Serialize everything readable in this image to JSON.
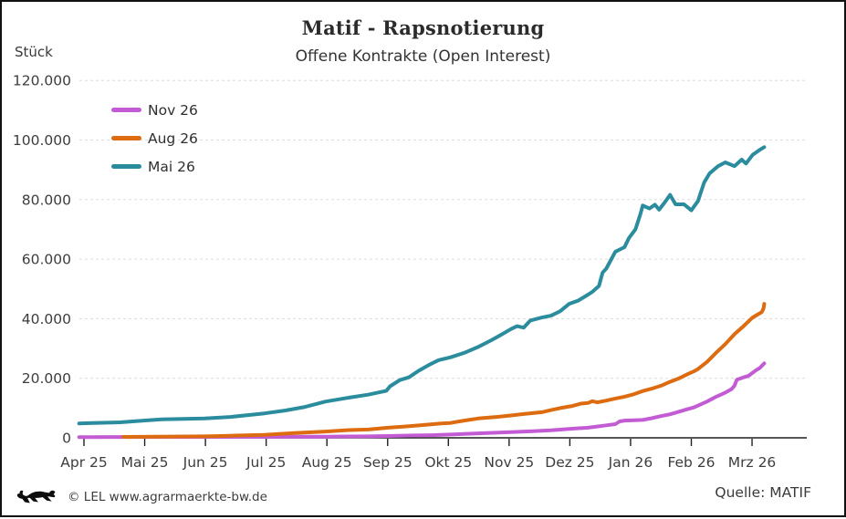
{
  "header": {
    "title": "Matif - Rapsnotierung",
    "subtitle": "Offene Kontrakte (Open Interest)",
    "y_axis_unit": "Stück"
  },
  "footer": {
    "copyright": "© LEL www.agrarmaerkte-bw.de",
    "source": "Quelle: MATIF",
    "logo_icon": "bw-lion-logo"
  },
  "colors": {
    "nov26": "#c35cd4",
    "aug26": "#dd6b10",
    "mai26": "#2b8c9e",
    "grid": "#dcdcdc",
    "axis": "#1f1f1f",
    "text": "#3d3d3d"
  },
  "legend": {
    "items": [
      {
        "label": "Nov 26",
        "color": "#c35cd4"
      },
      {
        "label": "Aug 26",
        "color": "#dd6b10"
      },
      {
        "label": "Mai 26",
        "color": "#2b8c9e"
      }
    ]
  },
  "chart_data": {
    "type": "line",
    "title": "Matif - Rapsnotierung",
    "subtitle": "Offene Kontrakte (Open Interest)",
    "ylabel": "Stück",
    "xlabel": "",
    "ylim": [
      0,
      120000
    ],
    "grid": "horizontal-dashed",
    "legend_position": "top-left",
    "x_unit": "months (0 = Apr 25 ... 11 = Mrz 26)",
    "x_tick_labels": [
      "Apr 25",
      "Mai 25",
      "Jun 25",
      "Jul 25",
      "Aug 25",
      "Sep 25",
      "Okt 25",
      "Nov 25",
      "Dez 25",
      "Jan 26",
      "Feb 26",
      "Mrz 26"
    ],
    "y_ticks": [
      0,
      20000,
      40000,
      60000,
      80000,
      100000,
      120000
    ],
    "y_tick_labels": [
      "0",
      "20.000",
      "40.000",
      "60.000",
      "80.000",
      "100.000",
      "120.000"
    ],
    "series": [
      {
        "name": "Nov 26",
        "color": "#c35cd4",
        "points": [
          [
            -0.08,
            250
          ],
          [
            1.99,
            300
          ],
          [
            2.97,
            350
          ],
          [
            3.98,
            400
          ],
          [
            4.68,
            500
          ],
          [
            5.01,
            600
          ],
          [
            5.43,
            800
          ],
          [
            5.73,
            900
          ],
          [
            6.03,
            1100
          ],
          [
            6.49,
            1500
          ],
          [
            7.03,
            1900
          ],
          [
            7.39,
            2200
          ],
          [
            7.69,
            2500
          ],
          [
            7.99,
            3000
          ],
          [
            8.3,
            3400
          ],
          [
            8.45,
            3800
          ],
          [
            8.6,
            4200
          ],
          [
            8.75,
            4600
          ],
          [
            8.82,
            5500
          ],
          [
            8.9,
            5800
          ],
          [
            9.05,
            5900
          ],
          [
            9.2,
            6000
          ],
          [
            9.35,
            6600
          ],
          [
            9.5,
            7300
          ],
          [
            9.65,
            7900
          ],
          [
            9.8,
            8800
          ],
          [
            9.95,
            9700
          ],
          [
            10.04,
            10200
          ],
          [
            10.11,
            10800
          ],
          [
            10.26,
            12200
          ],
          [
            10.41,
            13800
          ],
          [
            10.56,
            15200
          ],
          [
            10.66,
            16300
          ],
          [
            10.71,
            17500
          ],
          [
            10.75,
            19500
          ],
          [
            10.86,
            20300
          ],
          [
            10.94,
            20800
          ],
          [
            11.06,
            22600
          ],
          [
            11.13,
            23500
          ],
          [
            11.2,
            25000
          ]
        ]
      },
      {
        "name": "Aug 26",
        "color": "#dd6b10",
        "points": [
          [
            0.65,
            300
          ],
          [
            1.99,
            500
          ],
          [
            2.41,
            700
          ],
          [
            2.97,
            1000
          ],
          [
            3.47,
            1600
          ],
          [
            3.98,
            2100
          ],
          [
            4.37,
            2600
          ],
          [
            4.68,
            2800
          ],
          [
            5.01,
            3400
          ],
          [
            5.28,
            3800
          ],
          [
            5.58,
            4300
          ],
          [
            5.88,
            4800
          ],
          [
            6.03,
            5000
          ],
          [
            6.26,
            5800
          ],
          [
            6.49,
            6500
          ],
          [
            6.79,
            7000
          ],
          [
            7.03,
            7500
          ],
          [
            7.24,
            8000
          ],
          [
            7.54,
            8600
          ],
          [
            7.69,
            9300
          ],
          [
            7.84,
            10000
          ],
          [
            8.04,
            10700
          ],
          [
            8.18,
            11500
          ],
          [
            8.3,
            11700
          ],
          [
            8.37,
            12300
          ],
          [
            8.45,
            11900
          ],
          [
            8.6,
            12500
          ],
          [
            8.75,
            13200
          ],
          [
            8.9,
            13800
          ],
          [
            9.05,
            14600
          ],
          [
            9.2,
            15700
          ],
          [
            9.35,
            16500
          ],
          [
            9.5,
            17500
          ],
          [
            9.65,
            18800
          ],
          [
            9.8,
            20000
          ],
          [
            9.95,
            21500
          ],
          [
            10.04,
            22300
          ],
          [
            10.11,
            23100
          ],
          [
            10.26,
            25500
          ],
          [
            10.41,
            28600
          ],
          [
            10.56,
            31500
          ],
          [
            10.71,
            34800
          ],
          [
            10.86,
            37500
          ],
          [
            11.01,
            40400
          ],
          [
            11.1,
            41500
          ],
          [
            11.16,
            42200
          ],
          [
            11.19,
            43500
          ],
          [
            11.2,
            45000
          ]
        ]
      },
      {
        "name": "Mai 26",
        "color": "#2b8c9e",
        "points": [
          [
            -0.08,
            4800
          ],
          [
            0.15,
            5000
          ],
          [
            0.6,
            5200
          ],
          [
            0.98,
            5800
          ],
          [
            1.28,
            6200
          ],
          [
            1.99,
            6500
          ],
          [
            2.41,
            7000
          ],
          [
            2.97,
            8200
          ],
          [
            3.32,
            9200
          ],
          [
            3.62,
            10300
          ],
          [
            3.98,
            12200
          ],
          [
            4.37,
            13500
          ],
          [
            4.68,
            14500
          ],
          [
            4.98,
            15800
          ],
          [
            5.04,
            17300
          ],
          [
            5.2,
            19400
          ],
          [
            5.35,
            20300
          ],
          [
            5.51,
            22500
          ],
          [
            5.69,
            24600
          ],
          [
            5.84,
            26100
          ],
          [
            6.03,
            27000
          ],
          [
            6.26,
            28500
          ],
          [
            6.49,
            30500
          ],
          [
            6.71,
            32800
          ],
          [
            6.86,
            34500
          ],
          [
            7.03,
            36500
          ],
          [
            7.13,
            37500
          ],
          [
            7.24,
            37000
          ],
          [
            7.35,
            39400
          ],
          [
            7.54,
            40400
          ],
          [
            7.69,
            41000
          ],
          [
            7.84,
            42500
          ],
          [
            7.99,
            45000
          ],
          [
            8.14,
            46100
          ],
          [
            8.3,
            48100
          ],
          [
            8.37,
            49000
          ],
          [
            8.48,
            51000
          ],
          [
            8.54,
            55500
          ],
          [
            8.6,
            56800
          ],
          [
            8.75,
            62500
          ],
          [
            8.9,
            64000
          ],
          [
            8.97,
            67000
          ],
          [
            9.08,
            70000
          ],
          [
            9.16,
            75000
          ],
          [
            9.2,
            78000
          ],
          [
            9.31,
            77000
          ],
          [
            9.4,
            78300
          ],
          [
            9.47,
            76600
          ],
          [
            9.56,
            79000
          ],
          [
            9.65,
            81600
          ],
          [
            9.74,
            78400
          ],
          [
            9.88,
            78400
          ],
          [
            10.0,
            76400
          ],
          [
            10.11,
            79500
          ],
          [
            10.21,
            85700
          ],
          [
            10.3,
            88800
          ],
          [
            10.44,
            91200
          ],
          [
            10.56,
            92500
          ],
          [
            10.71,
            91200
          ],
          [
            10.83,
            93400
          ],
          [
            10.9,
            92100
          ],
          [
            11.01,
            95000
          ],
          [
            11.12,
            96600
          ],
          [
            11.2,
            97600
          ]
        ]
      }
    ]
  }
}
